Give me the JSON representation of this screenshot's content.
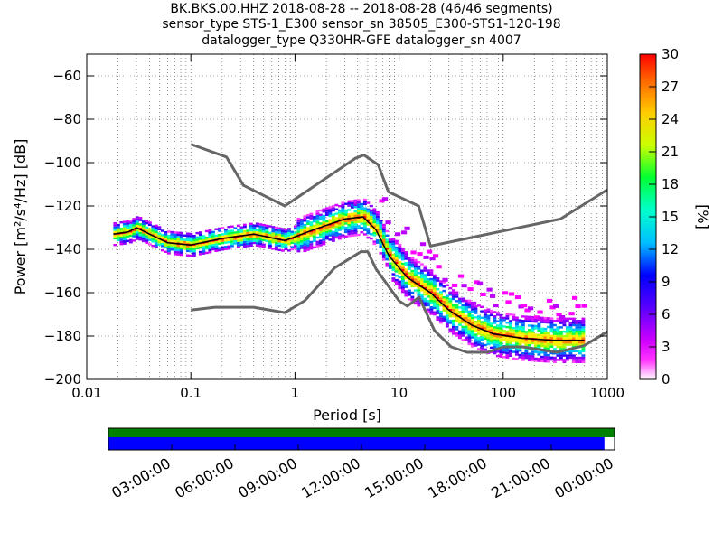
{
  "title_lines": [
    "BK.BKS.00.HHZ   2018-08-28 -- 2018-08-28  (46/46 segments)",
    "sensor_type STS-1_E300 sensor_sn 38505_E300-STS1-120-198",
    "datalogger_type Q330HR-GFE datalogger_sn 4007"
  ],
  "chart_data": {
    "type": "heatmap",
    "xlabel": "Period [s]",
    "ylabel": "Power [m²/s⁴/Hz] [dB]",
    "xscale": "log",
    "xlim": [
      0.01,
      1000
    ],
    "ylim": [
      -200,
      -50
    ],
    "xticks": [
      {
        "v": 0.01,
        "label": "0.01"
      },
      {
        "v": 0.1,
        "label": "0.1"
      },
      {
        "v": 1,
        "label": "1"
      },
      {
        "v": 10,
        "label": "10"
      },
      {
        "v": 100,
        "label": "100"
      },
      {
        "v": 1000,
        "label": "1000"
      }
    ],
    "yticks": [
      -200,
      -180,
      -160,
      -140,
      -120,
      -100,
      -80,
      -60
    ],
    "grid": true,
    "colorbar": {
      "label": "[%]",
      "range": [
        0,
        30
      ],
      "ticks": [
        0,
        3,
        6,
        9,
        12,
        15,
        18,
        21,
        24,
        27,
        30
      ],
      "colors": [
        "#ffffff",
        "#ff00ff",
        "#8a2be2",
        "#0000ff",
        "#00bfff",
        "#00ff7f",
        "#7fff00",
        "#ffff00",
        "#ffa500",
        "#ff0000"
      ]
    },
    "nhnm": {
      "name": "NHNM",
      "x": [
        0.1,
        0.22,
        0.32,
        0.8,
        3.8,
        4.6,
        6.3,
        7.9,
        15.4,
        20,
        354.8,
        1000
      ],
      "y": [
        -91.5,
        -97.4,
        -110.5,
        -120,
        -98,
        -96.5,
        -101,
        -113.5,
        -120,
        -138.5,
        -126,
        -112.5
      ]
    },
    "nlnm": {
      "name": "NLNM",
      "x": [
        0.1,
        0.17,
        0.4,
        0.8,
        1.24,
        2.4,
        4.3,
        5,
        6,
        10,
        12,
        15.6,
        21.9,
        31.6,
        45,
        70,
        101,
        154,
        328,
        600,
        1000
      ],
      "y": [
        -168,
        -166.7,
        -166.7,
        -169.2,
        -163.7,
        -148.6,
        -141.1,
        -141.1,
        -149,
        -163.8,
        -166.2,
        -162.1,
        -177.5,
        -185,
        -187.5,
        -187.5,
        -185,
        -185,
        -187.5,
        -184.4,
        -178
      ]
    },
    "median": {
      "name": "mode",
      "x": [
        0.018,
        0.025,
        0.03,
        0.04,
        0.06,
        0.1,
        0.2,
        0.4,
        0.8,
        1.5,
        3,
        4.5,
        6,
        8,
        12,
        20,
        30,
        50,
        80,
        150,
        300,
        600
      ],
      "y": [
        -133,
        -132,
        -130,
        -133,
        -137,
        -138,
        -135,
        -133,
        -136,
        -131,
        -126,
        -125,
        -131,
        -143,
        -153,
        -160,
        -168,
        -175,
        -179,
        -181,
        -182,
        -182
      ]
    },
    "x_axis_label_note": ""
  },
  "time_coverage": {
    "tick_labels": [
      "03:00:00",
      "06:00:00",
      "09:00:00",
      "12:00:00",
      "15:00:00",
      "18:00:00",
      "21:00:00",
      "00:00:00"
    ],
    "coverage_fraction": 0.98,
    "top_color": "#008000",
    "bottom_color": "#0000ff"
  }
}
